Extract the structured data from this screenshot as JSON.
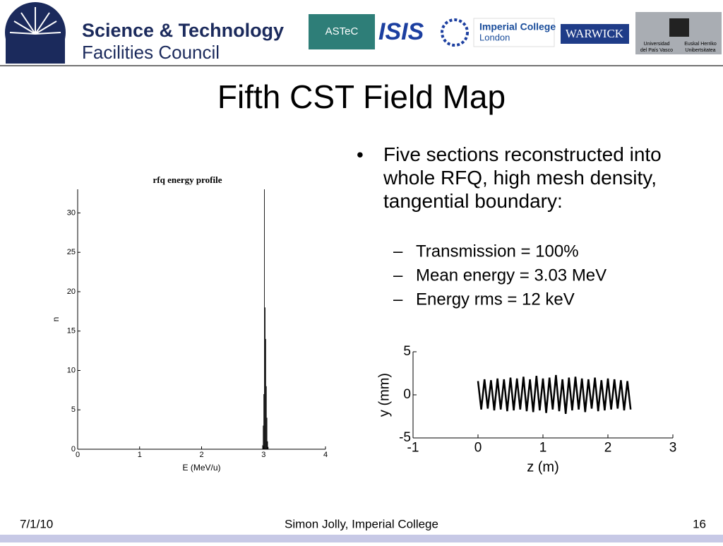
{
  "header": {
    "org_line1": "Science & Technology",
    "org_line2": "Facilities Council",
    "logo_astec": "ASTeC",
    "logo_isis": "ISIS",
    "logo_imperial_1": "Imperial College",
    "logo_imperial_2": "London",
    "logo_warwick": "WARWICK",
    "logo_upv_1": "Universidad",
    "logo_upv_2": "del País Vasco",
    "logo_upv_3": "Euskal Herriko",
    "logo_upv_4": "Unibertsitatea"
  },
  "title": "Fifth CST Field Map",
  "bullets": {
    "main": "Five sections reconstructed into whole RFQ, high mesh density, tangential boundary:",
    "sub": [
      "Transmission = 100%",
      "Mean energy = 3.03 MeV",
      "Energy rms = 12 keV"
    ]
  },
  "chart_data": [
    {
      "type": "histogram",
      "title": "rfq energy profile",
      "x_label": "E (MeV/u)",
      "y_label": "n",
      "color": "#000000",
      "bins": [
        2.98,
        2.99,
        3.0,
        3.01,
        3.02,
        3.03,
        3.04,
        3.05,
        3.06,
        3.07,
        3.08
      ],
      "values": [
        0.5,
        3,
        7,
        33,
        18,
        14,
        8,
        4,
        1,
        0.3
      ],
      "xlim": [
        0,
        4
      ],
      "xticks": [
        0,
        1,
        2,
        3,
        4
      ],
      "ylim": [
        0,
        33
      ],
      "yticks": [
        0,
        5,
        10,
        15,
        20,
        25,
        30
      ]
    },
    {
      "type": "line",
      "x_label": "z (m)",
      "y_label": "y (mm)",
      "color": "#000000",
      "x": [
        0,
        0.05,
        0.1,
        0.15,
        0.2,
        0.25,
        0.3,
        0.35,
        0.4,
        0.45,
        0.5,
        0.55,
        0.6,
        0.65,
        0.7,
        0.75,
        0.8,
        0.85,
        0.9,
        0.95,
        1.0,
        1.05,
        1.1,
        1.15,
        1.2,
        1.25,
        1.3,
        1.35,
        1.4,
        1.45,
        1.5,
        1.55,
        1.6,
        1.65,
        1.7,
        1.75,
        1.8,
        1.85,
        1.9,
        1.95,
        2.0,
        2.05,
        2.1,
        2.15,
        2.2,
        2.25,
        2.3,
        2.35
      ],
      "values": [
        1.6,
        -1.7,
        1.8,
        -1.6,
        1.7,
        -1.8,
        1.9,
        -1.7,
        1.8,
        -1.9,
        2.0,
        -1.8,
        1.9,
        -1.7,
        2.1,
        -1.9,
        1.8,
        -2.0,
        2.2,
        -1.8,
        1.9,
        -2.1,
        2.0,
        -1.7,
        2.3,
        -1.9,
        1.8,
        -2.2,
        2.0,
        -1.8,
        2.1,
        -1.7,
        1.9,
        -2.0,
        1.8,
        -1.6,
        2.0,
        -1.9,
        1.7,
        -1.8,
        1.9,
        -1.7,
        1.8,
        -1.6,
        1.7,
        -1.8,
        1.6,
        -1.7
      ],
      "xlim": [
        -1,
        3
      ],
      "xticks": [
        -1,
        0,
        1,
        2,
        3
      ],
      "ylim": [
        -5,
        5
      ],
      "yticks": [
        -5,
        0,
        5
      ]
    }
  ],
  "footer": {
    "date": "7/1/10",
    "author": "Simon Jolly, Imperial College",
    "page": "16"
  }
}
